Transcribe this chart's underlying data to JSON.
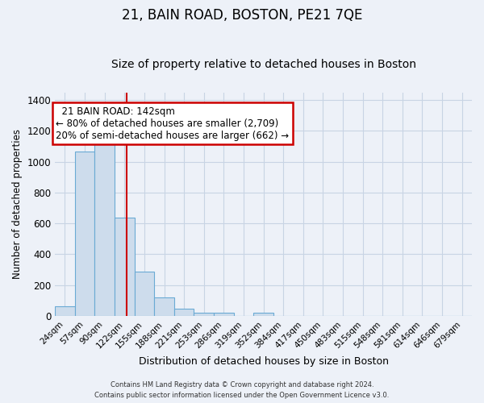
{
  "title": "21, BAIN ROAD, BOSTON, PE21 7QE",
  "subtitle": "Size of property relative to detached houses in Boston",
  "xlabel": "Distribution of detached houses by size in Boston",
  "ylabel": "Number of detached properties",
  "footer_line1": "Contains HM Land Registry data © Crown copyright and database right 2024.",
  "footer_line2": "Contains public sector information licensed under the Open Government Licence v3.0.",
  "bin_labels": [
    "24sqm",
    "57sqm",
    "90sqm",
    "122sqm",
    "155sqm",
    "188sqm",
    "221sqm",
    "253sqm",
    "286sqm",
    "319sqm",
    "352sqm",
    "384sqm",
    "417sqm",
    "450sqm",
    "483sqm",
    "515sqm",
    "548sqm",
    "581sqm",
    "614sqm",
    "646sqm",
    "679sqm"
  ],
  "bar_values": [
    65,
    1065,
    1155,
    635,
    285,
    120,
    47,
    20,
    20,
    0,
    20,
    0,
    0,
    0,
    0,
    0,
    0,
    0,
    0,
    0,
    0
  ],
  "bar_color": "#cddcec",
  "bar_edge_color": "#6aaad4",
  "red_line_x": 3.6,
  "annotation_title": "21 BAIN ROAD: 142sqm",
  "annotation_line1": "← 80% of detached houses are smaller (2,709)",
  "annotation_line2": "20% of semi-detached houses are larger (662) →",
  "annotation_box_color": "#ffffff",
  "annotation_box_edge": "#cc0000",
  "red_line_color": "#cc0000",
  "ylim": [
    0,
    1450
  ],
  "yticks": [
    0,
    200,
    400,
    600,
    800,
    1000,
    1200,
    1400
  ],
  "title_fontsize": 12,
  "subtitle_fontsize": 10,
  "grid_color": "#c8d4e4",
  "background_color": "#edf1f8"
}
